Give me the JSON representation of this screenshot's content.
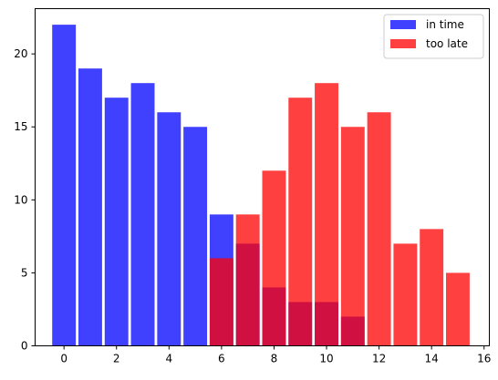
{
  "chart_data": {
    "type": "bar",
    "title": "",
    "xlabel": "",
    "ylabel": "",
    "xlim": [
      -1.1,
      16.2
    ],
    "ylim": [
      0,
      23.1
    ],
    "xticks": [
      0,
      2,
      4,
      6,
      8,
      10,
      12,
      14,
      16
    ],
    "yticks": [
      0,
      5,
      10,
      15,
      20
    ],
    "grid": false,
    "legend_position": "top-right",
    "bar_width": 0.9,
    "series": [
      {
        "name": "in time",
        "color": "#0000ff",
        "alpha": 0.75,
        "x": [
          0,
          1,
          2,
          3,
          4,
          5,
          6,
          7,
          8,
          9,
          10,
          11
        ],
        "values": [
          22,
          19,
          17,
          18,
          16,
          15,
          9,
          7,
          4,
          3,
          3,
          2
        ]
      },
      {
        "name": "too late",
        "color": "#ff0000",
        "alpha": 0.75,
        "x": [
          6,
          7,
          8,
          9,
          10,
          11,
          12,
          13,
          14,
          15
        ],
        "values": [
          6,
          9,
          12,
          17,
          18,
          15,
          16,
          7,
          8,
          5
        ]
      }
    ]
  }
}
